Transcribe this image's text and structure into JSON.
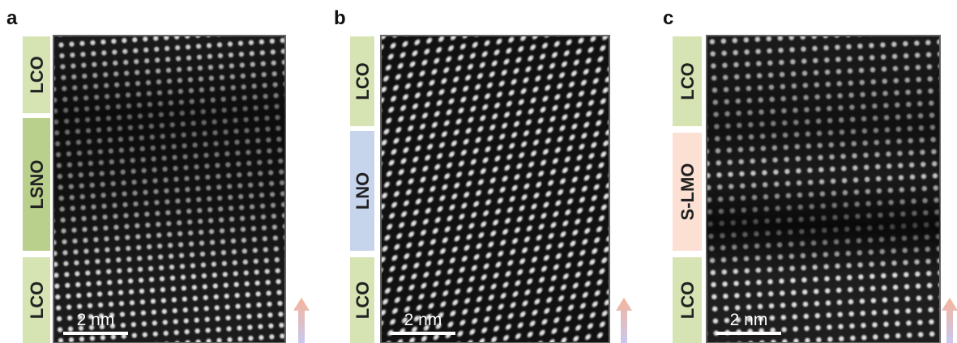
{
  "panels": [
    {
      "label": "a",
      "layers": [
        "LCO",
        "LSNO",
        "LCO"
      ],
      "scale_bar": "2 nm"
    },
    {
      "label": "b",
      "layers": [
        "LCO",
        "LNO",
        "LCO"
      ],
      "scale_bar": "2 nm"
    },
    {
      "label": "c",
      "layers": [
        "LCO",
        "S-LMO",
        "LCO"
      ],
      "scale_bar": "2 nm"
    }
  ]
}
